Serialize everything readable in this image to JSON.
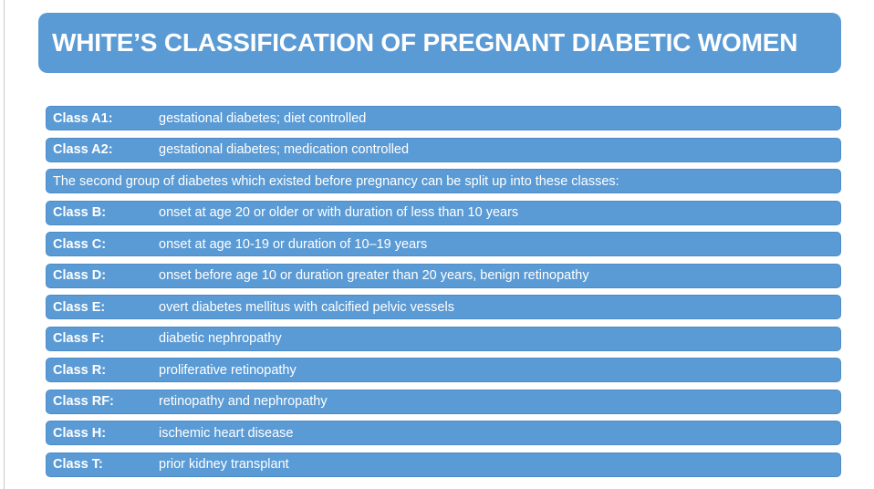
{
  "title": "WHITE’S CLASSIFICATION OF PREGNANT DIABETIC WOMEN",
  "colors": {
    "bar_fill": "#5b9bd5",
    "bar_border": "#4e8bc8",
    "text": "#ffffff",
    "page_background": "#ffffff",
    "left_rule": "#c9c9c9"
  },
  "rows": [
    {
      "type": "class",
      "label": "Class A1:",
      "description": "gestational diabetes; diet controlled"
    },
    {
      "type": "class",
      "label": "Class A2:",
      "description": "gestational diabetes; medication controlled"
    },
    {
      "type": "note",
      "text": "The second group of diabetes which existed before pregnancy can be split up into these classes:"
    },
    {
      "type": "class",
      "label": "Class B:",
      "description": "onset at age 20 or older or with duration of less than 10 years"
    },
    {
      "type": "class",
      "label": "Class C:",
      "description": "onset at age 10-19 or duration of 10–19 years"
    },
    {
      "type": "class",
      "label": "Class D:",
      "description": "onset before age 10 or duration greater than 20 years, benign retinopathy"
    },
    {
      "type": "class",
      "label": "Class E:",
      "description": "overt diabetes mellitus with calcified pelvic vessels"
    },
    {
      "type": "class",
      "label": "Class F:",
      "description": "diabetic nephropathy"
    },
    {
      "type": "class",
      "label": "Class R:",
      "description": "proliferative retinopathy"
    },
    {
      "type": "class",
      "label": "Class RF:",
      "description": "retinopathy and nephropathy"
    },
    {
      "type": "class",
      "label": "Class H:",
      "description": "ischemic heart disease"
    },
    {
      "type": "class",
      "label": "Class T:",
      "description": "prior kidney transplant"
    }
  ]
}
